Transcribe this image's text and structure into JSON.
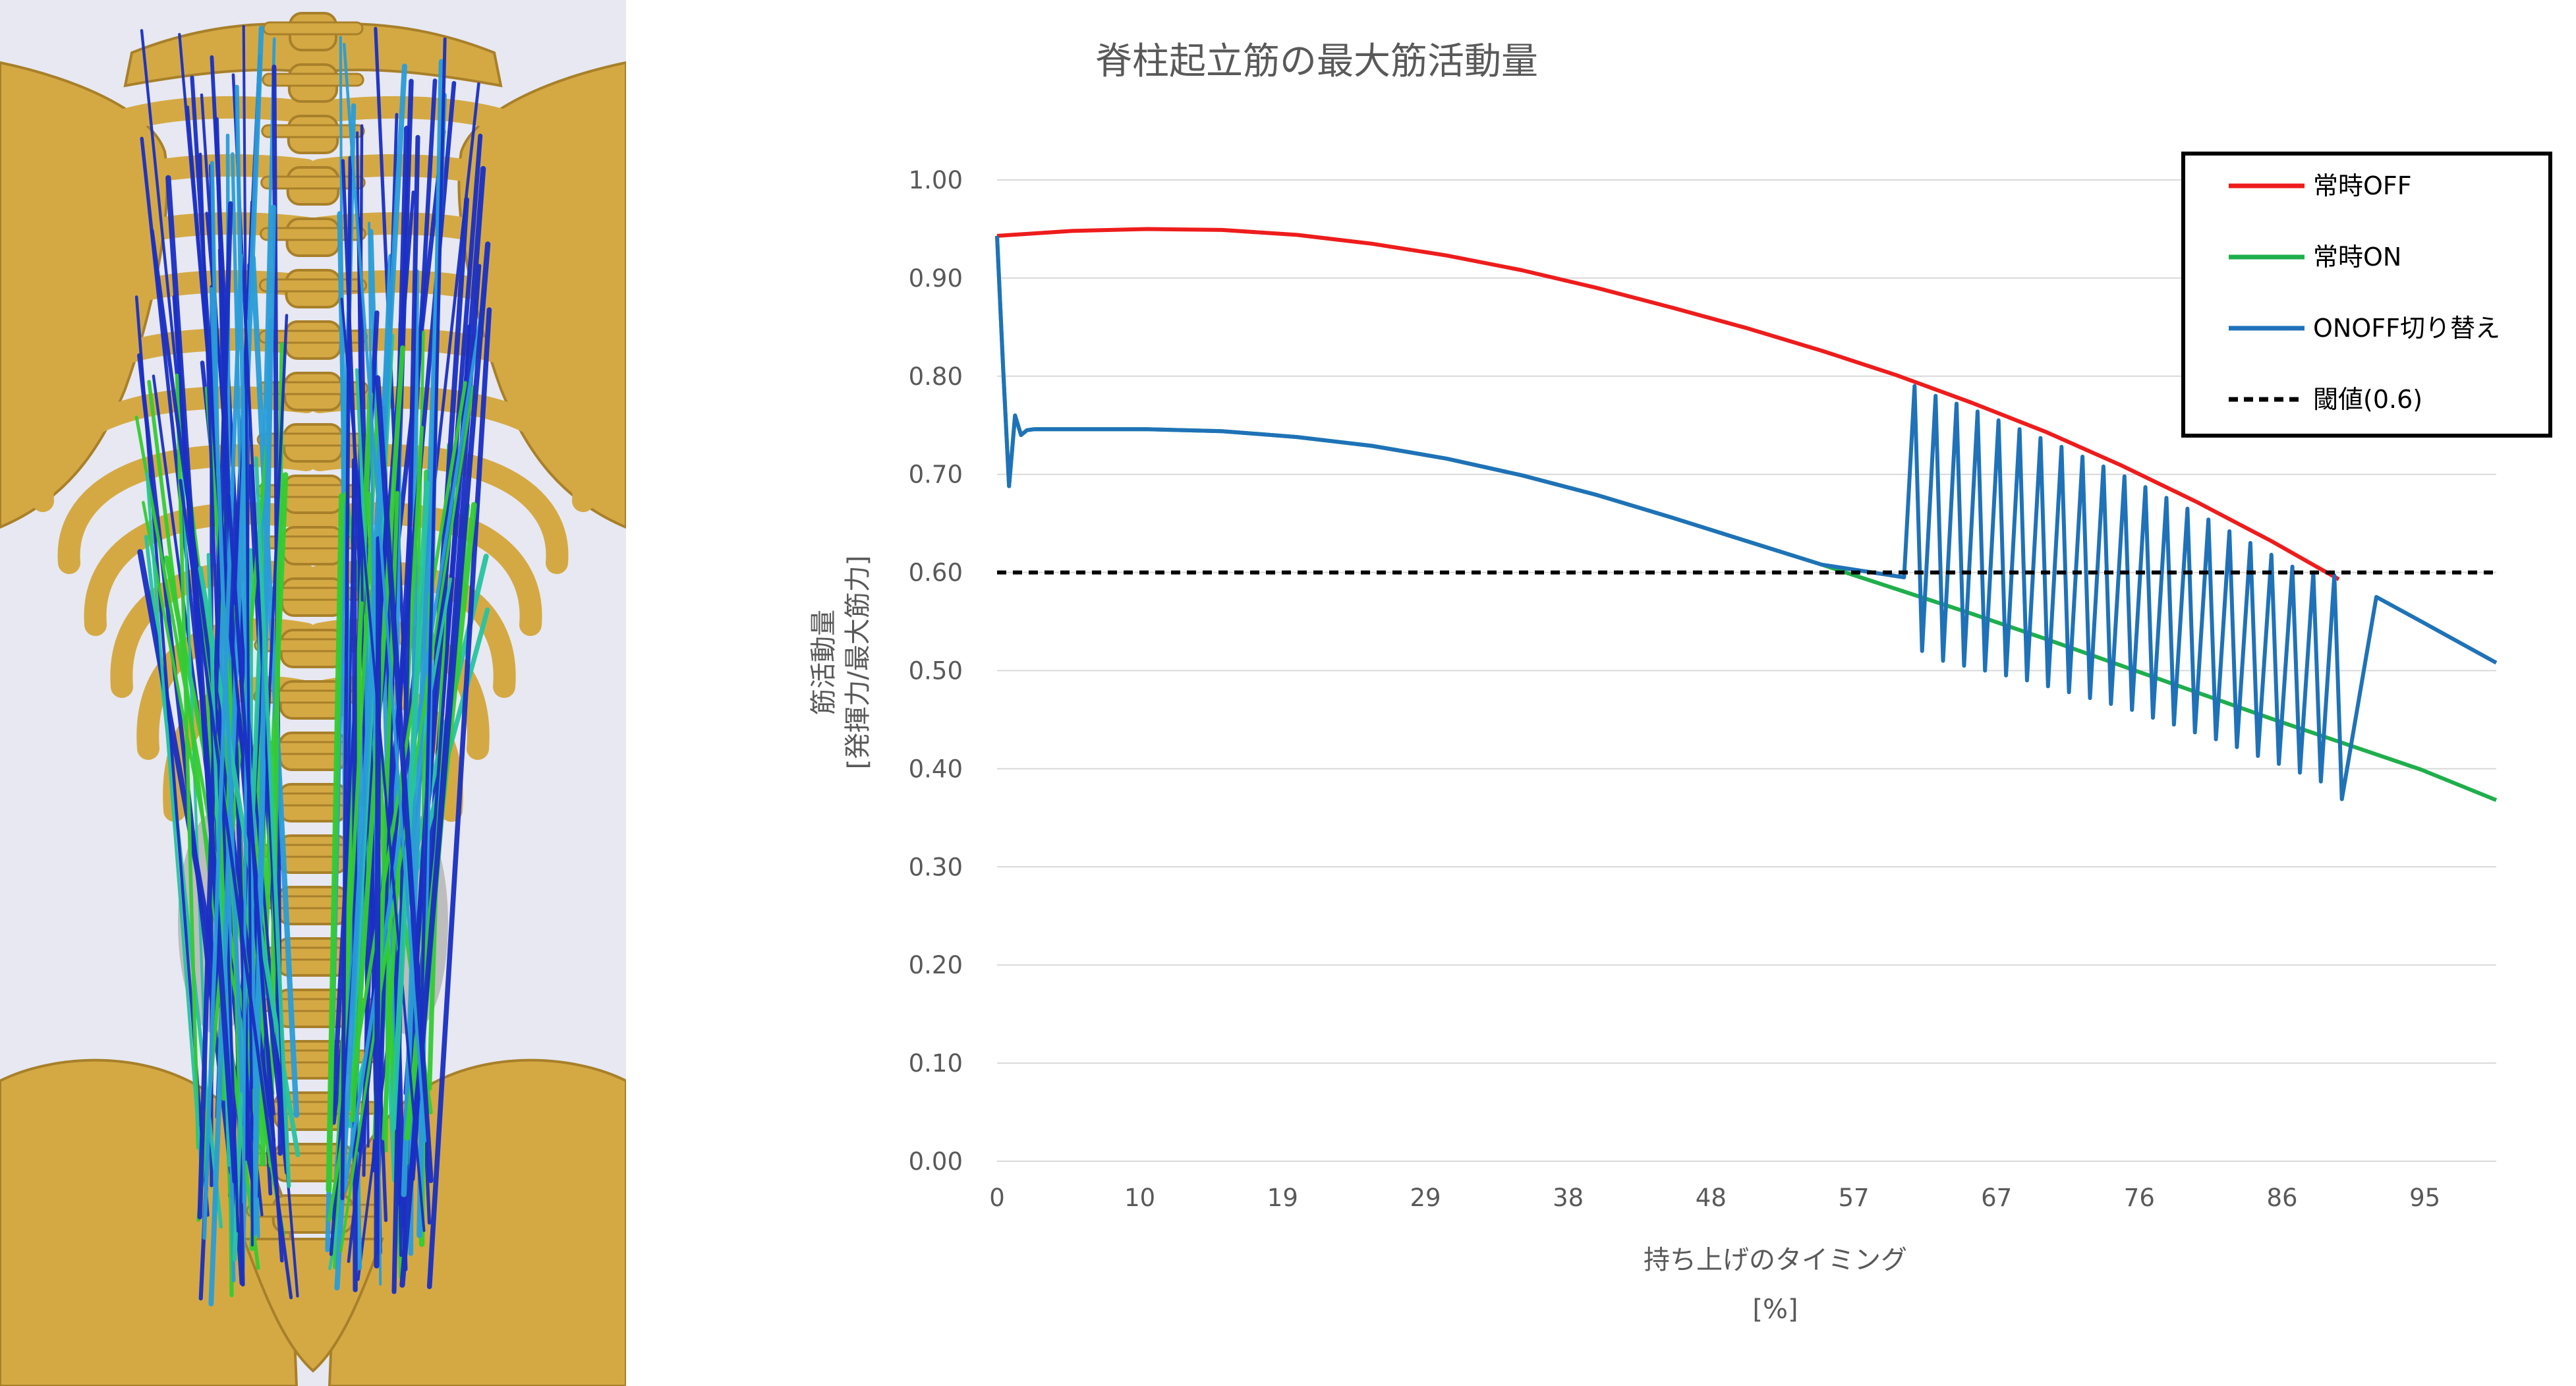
{
  "chart_data": {
    "type": "line",
    "title": "脊柱起立筋の最大筋活動量",
    "xlabel": [
      "持ち上げのタイミング",
      "[%]"
    ],
    "ylabel": [
      "筋活動量",
      "[発揮力/最大筋力]"
    ],
    "xlim": [
      0,
      100
    ],
    "ylim": [
      0,
      1
    ],
    "grid": true,
    "legend_position": "top-right",
    "x_ticks": [
      "0",
      "10",
      "19",
      "29",
      "38",
      "48",
      "57",
      "67",
      "76",
      "86",
      "95"
    ],
    "y_ticks": [
      "0.00",
      "0.10",
      "0.20",
      "0.30",
      "0.40",
      "0.50",
      "0.60",
      "0.70",
      "0.80",
      "0.90",
      "1.00"
    ],
    "series": [
      {
        "name": "常時OFF",
        "color": "#ee1c1c",
        "style": "solid",
        "x": [
          0,
          5,
          10,
          15,
          20,
          25,
          30,
          35,
          40,
          45,
          50,
          55,
          60,
          65,
          70,
          75,
          80,
          85,
          89.5
        ],
        "y": [
          0.943,
          0.948,
          0.95,
          0.949,
          0.944,
          0.935,
          0.923,
          0.908,
          0.89,
          0.87,
          0.849,
          0.826,
          0.801,
          0.773,
          0.743,
          0.709,
          0.672,
          0.632,
          0.593
        ]
      },
      {
        "name": "常時ON",
        "color": "#1fae4c",
        "style": "solid",
        "x": [
          0,
          0.4,
          0.8,
          1.2,
          1.6,
          2.0,
          2.5,
          5,
          10,
          15,
          20,
          25,
          30,
          35,
          40,
          45,
          50,
          55,
          60,
          65,
          70,
          75,
          80,
          85,
          90,
          95,
          100
        ],
        "y": [
          0.943,
          0.81,
          0.688,
          0.76,
          0.74,
          0.745,
          0.746,
          0.746,
          0.746,
          0.744,
          0.738,
          0.729,
          0.716,
          0.699,
          0.679,
          0.656,
          0.632,
          0.608,
          0.583,
          0.558,
          0.532,
          0.505,
          0.478,
          0.451,
          0.425,
          0.399,
          0.368
        ]
      },
      {
        "name": "ONOFF切り替え",
        "color": "#1f72b8",
        "style": "solid",
        "x": [
          0,
          0.4,
          0.8,
          1.2,
          1.6,
          2.0,
          2.5,
          5,
          10,
          15,
          20,
          25,
          30,
          35,
          40,
          45,
          50,
          55,
          60.5,
          61.2,
          61.7,
          62.6,
          63.1,
          64.0,
          64.5,
          65.4,
          65.9,
          66.8,
          67.3,
          68.2,
          68.7,
          69.6,
          70.1,
          71.0,
          71.5,
          72.4,
          72.9,
          73.8,
          74.3,
          75.2,
          75.7,
          76.6,
          77.1,
          78.0,
          78.5,
          79.4,
          79.9,
          80.8,
          81.3,
          82.2,
          82.7,
          83.6,
          84.1,
          85.0,
          85.5,
          86.4,
          86.9,
          87.8,
          88.3,
          89.2,
          89.7,
          92,
          95,
          100
        ],
        "y": [
          0.943,
          0.81,
          0.688,
          0.76,
          0.74,
          0.745,
          0.746,
          0.746,
          0.746,
          0.744,
          0.738,
          0.729,
          0.716,
          0.699,
          0.679,
          0.656,
          0.632,
          0.608,
          0.595,
          0.79,
          0.52,
          0.78,
          0.51,
          0.772,
          0.505,
          0.764,
          0.5,
          0.755,
          0.495,
          0.746,
          0.49,
          0.737,
          0.484,
          0.728,
          0.478,
          0.718,
          0.472,
          0.708,
          0.466,
          0.698,
          0.46,
          0.687,
          0.452,
          0.676,
          0.445,
          0.665,
          0.437,
          0.654,
          0.43,
          0.642,
          0.422,
          0.63,
          0.413,
          0.618,
          0.405,
          0.606,
          0.396,
          0.6,
          0.387,
          0.597,
          0.369,
          0.575,
          0.55,
          0.508
        ]
      },
      {
        "name": "閾値(0.6)",
        "color": "#000000",
        "style": "dashed",
        "x": [
          0,
          100
        ],
        "y": [
          0.6,
          0.6
        ]
      }
    ]
  },
  "figure": {
    "bone_color": "#d4a944",
    "background_color": "#e7e8f1",
    "muscle_colors": [
      "#1a2fc4",
      "#2a9dd8",
      "#33cc33",
      "#27c4a0"
    ]
  }
}
